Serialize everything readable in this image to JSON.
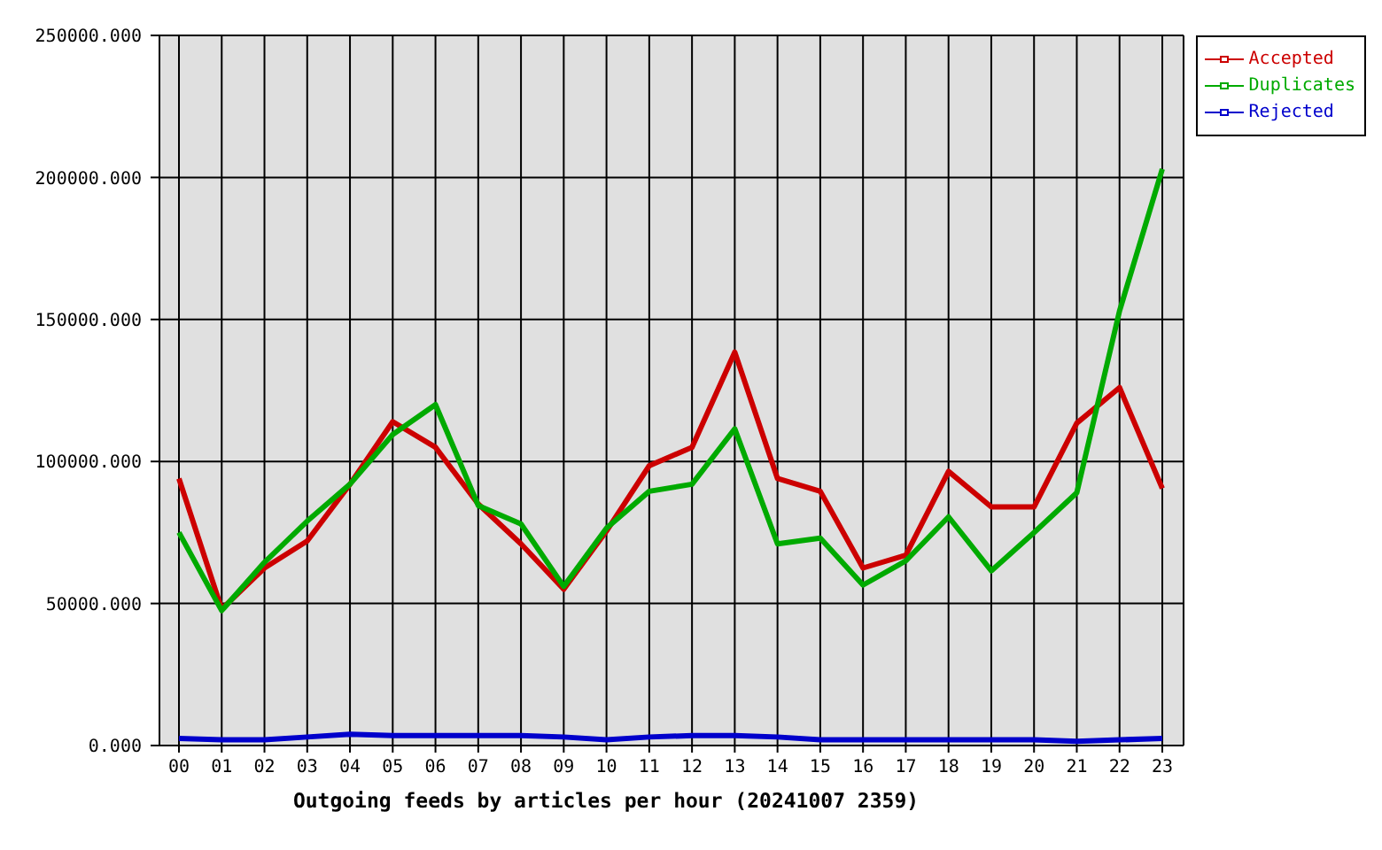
{
  "chart_data": {
    "type": "line",
    "xlabel": "Outgoing feeds by articles per hour (20241007 2359)",
    "categories": [
      "00",
      "01",
      "02",
      "03",
      "04",
      "05",
      "06",
      "07",
      "08",
      "09",
      "10",
      "11",
      "12",
      "13",
      "14",
      "15",
      "16",
      "17",
      "18",
      "19",
      "20",
      "21",
      "22",
      "23"
    ],
    "series": [
      {
        "name": "Accepted",
        "color": "#cc0000",
        "values": [
          94000,
          48000,
          62500,
          72000,
          92000,
          114000,
          105000,
          85000,
          71000,
          55000,
          75500,
          98500,
          105000,
          138500,
          94000,
          89500,
          62500,
          67000,
          96500,
          84000,
          84000,
          113500,
          126000,
          90500
        ]
      },
      {
        "name": "Duplicates",
        "color": "#00aa00",
        "values": [
          75000,
          47500,
          64500,
          79000,
          92000,
          109500,
          120000,
          84500,
          78000,
          56000,
          76500,
          89500,
          92000,
          111500,
          71000,
          73000,
          56500,
          65000,
          80500,
          61500,
          75000,
          89000,
          153000,
          203000
        ]
      },
      {
        "name": "Rejected",
        "color": "#0000cc",
        "values": [
          2500,
          2000,
          2000,
          3000,
          4000,
          3500,
          3500,
          3500,
          3500,
          3000,
          2000,
          3000,
          3500,
          3500,
          3000,
          2000,
          2000,
          2000,
          2000,
          2000,
          2000,
          1500,
          2000,
          2500
        ]
      }
    ],
    "ylim": [
      0,
      250000
    ],
    "yticks": [
      {
        "value": 0,
        "label": "0.000"
      },
      {
        "value": 50000,
        "label": "50000.000"
      },
      {
        "value": 100000,
        "label": "100000.000"
      },
      {
        "value": 150000,
        "label": "150000.000"
      },
      {
        "value": 200000,
        "label": "200000.000"
      },
      {
        "value": 250000,
        "label": "250000.000"
      }
    ],
    "grid": true,
    "legend": "top right",
    "line_style": "solid"
  }
}
